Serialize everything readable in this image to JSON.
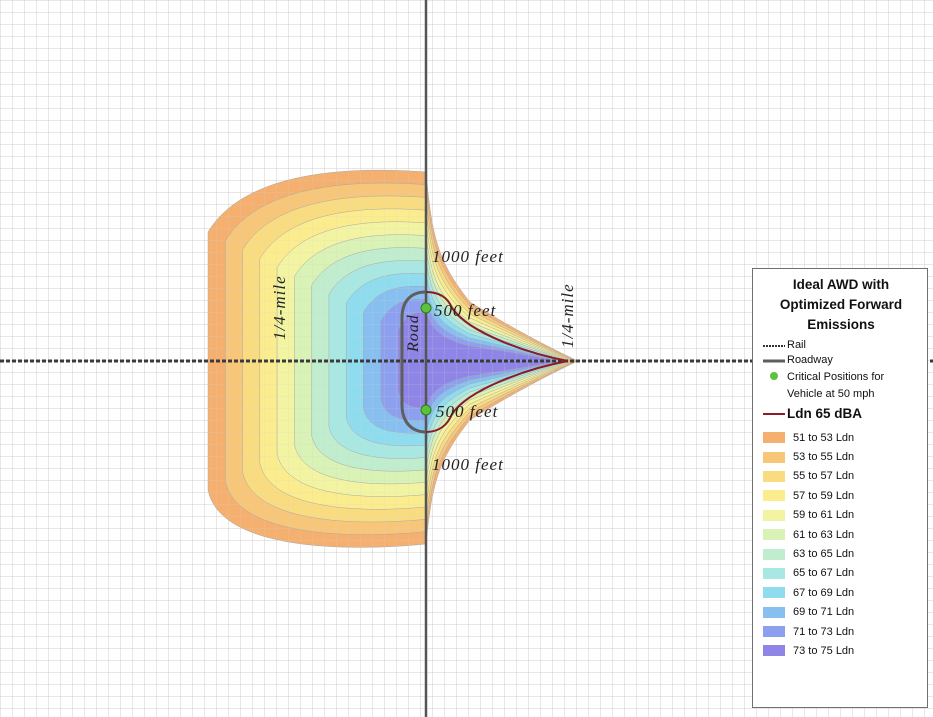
{
  "map": {
    "annotations": {
      "quarter_mile_left": "1/4-mile",
      "quarter_mile_right": "1/4-mile",
      "road": "Road",
      "feet_1000_top": "1000 feet",
      "feet_500_top": "500 feet",
      "feet_500_bottom": "500 feet",
      "feet_1000_bottom": "1000 feet"
    },
    "colors": {
      "grid": "#c8c8c8",
      "axis": "#444444",
      "roadway": "#5e5e5e",
      "ldn65_line": "#8b1a2a",
      "critical_point": "#5cc23c"
    }
  },
  "legend": {
    "title": "Ideal AWD with Optimized Forward Emissions",
    "items": [
      {
        "label": "Rail",
        "symbol": "rail-line"
      },
      {
        "label": "Roadway",
        "symbol": "roadway-line"
      },
      {
        "label": "Critical Positions for Vehicle at 50 mph",
        "symbol": "green-dot"
      },
      {
        "label": "Ldn 65 dBA",
        "symbol": "red-line"
      }
    ],
    "bands": [
      {
        "label": "51 to 53 Ldn",
        "color": "#f5b070"
      },
      {
        "label": "53 to 55 Ldn",
        "color": "#f8c678"
      },
      {
        "label": "55 to 57 Ldn",
        "color": "#fadc80"
      },
      {
        "label": "57 to 59 Ldn",
        "color": "#fbec8e"
      },
      {
        "label": "59 to 61 Ldn",
        "color": "#f3f4a2"
      },
      {
        "label": "61 to 63 Ldn",
        "color": "#d9f2b6"
      },
      {
        "label": "63 to 65 Ldn",
        "color": "#c0edcd"
      },
      {
        "label": "65 to 67 Ldn",
        "color": "#a9e8e2"
      },
      {
        "label": "67 to 69 Ldn",
        "color": "#8fdcef"
      },
      {
        "label": "69 to 71 Ldn",
        "color": "#87c0f0"
      },
      {
        "label": "71 to 73 Ldn",
        "color": "#8ca0ef"
      },
      {
        "label": "73 to 75 Ldn",
        "color": "#8f85e6"
      }
    ]
  }
}
